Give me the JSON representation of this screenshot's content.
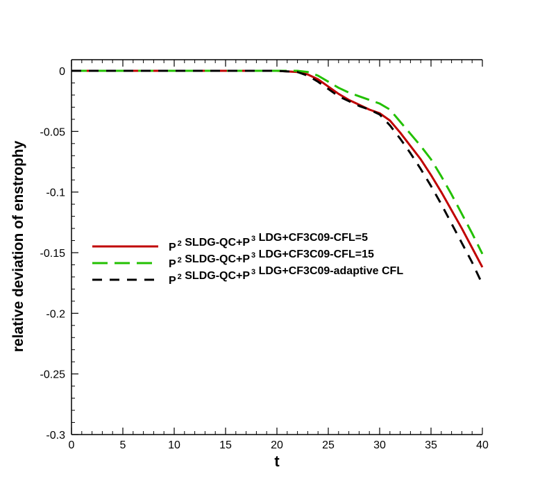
{
  "chart_data": {
    "type": "line",
    "title": "",
    "xlabel": "t",
    "ylabel": "relative deviation of enstrophy",
    "xlim": [
      0,
      40
    ],
    "ylim": [
      -0.3,
      0.0
    ],
    "xticks": [
      0,
      5,
      10,
      15,
      20,
      25,
      30,
      35,
      40
    ],
    "xtick_labels": [
      "0",
      "5",
      "10",
      "15",
      "20",
      "25",
      "30",
      "35",
      "40"
    ],
    "yticks": [
      0,
      -0.05,
      -0.1,
      -0.15,
      -0.2,
      -0.25,
      -0.3
    ],
    "ytick_labels": [
      "0",
      "-0.05",
      "-0.1",
      "-0.15",
      "-0.2",
      "-0.25",
      "-0.3"
    ],
    "grid": false,
    "legend_position": "center-left",
    "series": [
      {
        "name": "P2 SLDG-QC+P3 LDG+CF3C09-CFL=5",
        "legend": {
          "p1": "P",
          "s1": "2",
          "mid": " SLDG-QC+P",
          "s2": "3",
          "rest": " LDG+CF3C09-CFL=5"
        },
        "color": "#c00000",
        "dash": "solid",
        "x": [
          0,
          20,
          21,
          22,
          23,
          24,
          25,
          26,
          27,
          28,
          29,
          30,
          31,
          32,
          33,
          34,
          35,
          36,
          37,
          38,
          39,
          40
        ],
        "y": [
          0,
          0,
          -0.0005,
          -0.001,
          -0.003,
          -0.007,
          -0.013,
          -0.019,
          -0.024,
          -0.028,
          -0.032,
          -0.035,
          -0.041,
          -0.051,
          -0.062,
          -0.073,
          -0.086,
          -0.1,
          -0.115,
          -0.13,
          -0.146,
          -0.162
        ]
      },
      {
        "name": "P2 SLDG-QC+P3 LDG+CF3C09-CFL=15",
        "legend": {
          "p1": "P",
          "s1": "2",
          "mid": " SLDG-QC+P",
          "s2": "3",
          "rest": " LDG+CF3C09-CFL=15"
        },
        "color": "#22c000",
        "dash": "long-dash",
        "x": [
          0,
          21,
          22,
          23,
          24,
          25,
          26,
          27,
          28,
          29,
          30,
          31,
          32,
          33,
          34,
          35,
          36,
          37,
          38,
          39,
          40
        ],
        "y": [
          0,
          0,
          0,
          -0.001,
          -0.004,
          -0.009,
          -0.014,
          -0.018,
          -0.021,
          -0.024,
          -0.027,
          -0.032,
          -0.042,
          -0.052,
          -0.062,
          -0.073,
          -0.087,
          -0.102,
          -0.118,
          -0.134,
          -0.151
        ]
      },
      {
        "name": "P2 SLDG-QC+P3 LDG+CF3C09-adaptive CFL",
        "legend": {
          "p1": "P",
          "s1": "2",
          "mid": " SLDG-QC+P",
          "s2": "3",
          "rest": " LDG+CF3C09-adaptive CFL"
        },
        "color": "#000000",
        "dash": "dash",
        "x": [
          0,
          20,
          21,
          22,
          23,
          24,
          25,
          26,
          27,
          28,
          29,
          30,
          31,
          32,
          33,
          34,
          35,
          36,
          37,
          38,
          39,
          40
        ],
        "y": [
          0,
          0,
          -0.0005,
          -0.001,
          -0.004,
          -0.009,
          -0.015,
          -0.021,
          -0.025,
          -0.029,
          -0.032,
          -0.036,
          -0.045,
          -0.056,
          -0.068,
          -0.081,
          -0.095,
          -0.11,
          -0.126,
          -0.142,
          -0.158,
          -0.176
        ]
      }
    ]
  }
}
